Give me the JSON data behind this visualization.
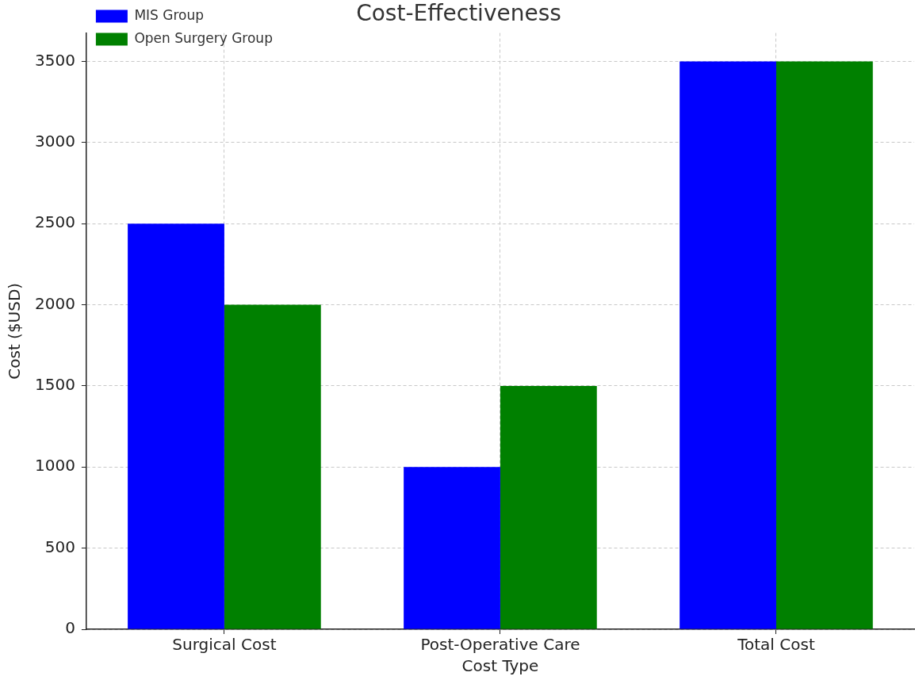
{
  "chart_data": {
    "type": "bar",
    "title": "Cost-Effectiveness",
    "xlabel": "Cost Type",
    "ylabel": "Cost ($USD)",
    "categories": [
      "Surgical Cost",
      "Post-Operative Care",
      "Total Cost"
    ],
    "series": [
      {
        "name": "MIS Group",
        "color": "#0000ff",
        "values": [
          2500,
          1000,
          3500
        ]
      },
      {
        "name": "Open Surgery Group",
        "color": "#008000",
        "values": [
          2000,
          1500,
          3500
        ]
      }
    ],
    "ylim": [
      0,
      3675
    ],
    "yticks": [
      0,
      500,
      1000,
      1500,
      2000,
      2500,
      3000,
      3500
    ],
    "grid": true,
    "legend": "top left"
  }
}
